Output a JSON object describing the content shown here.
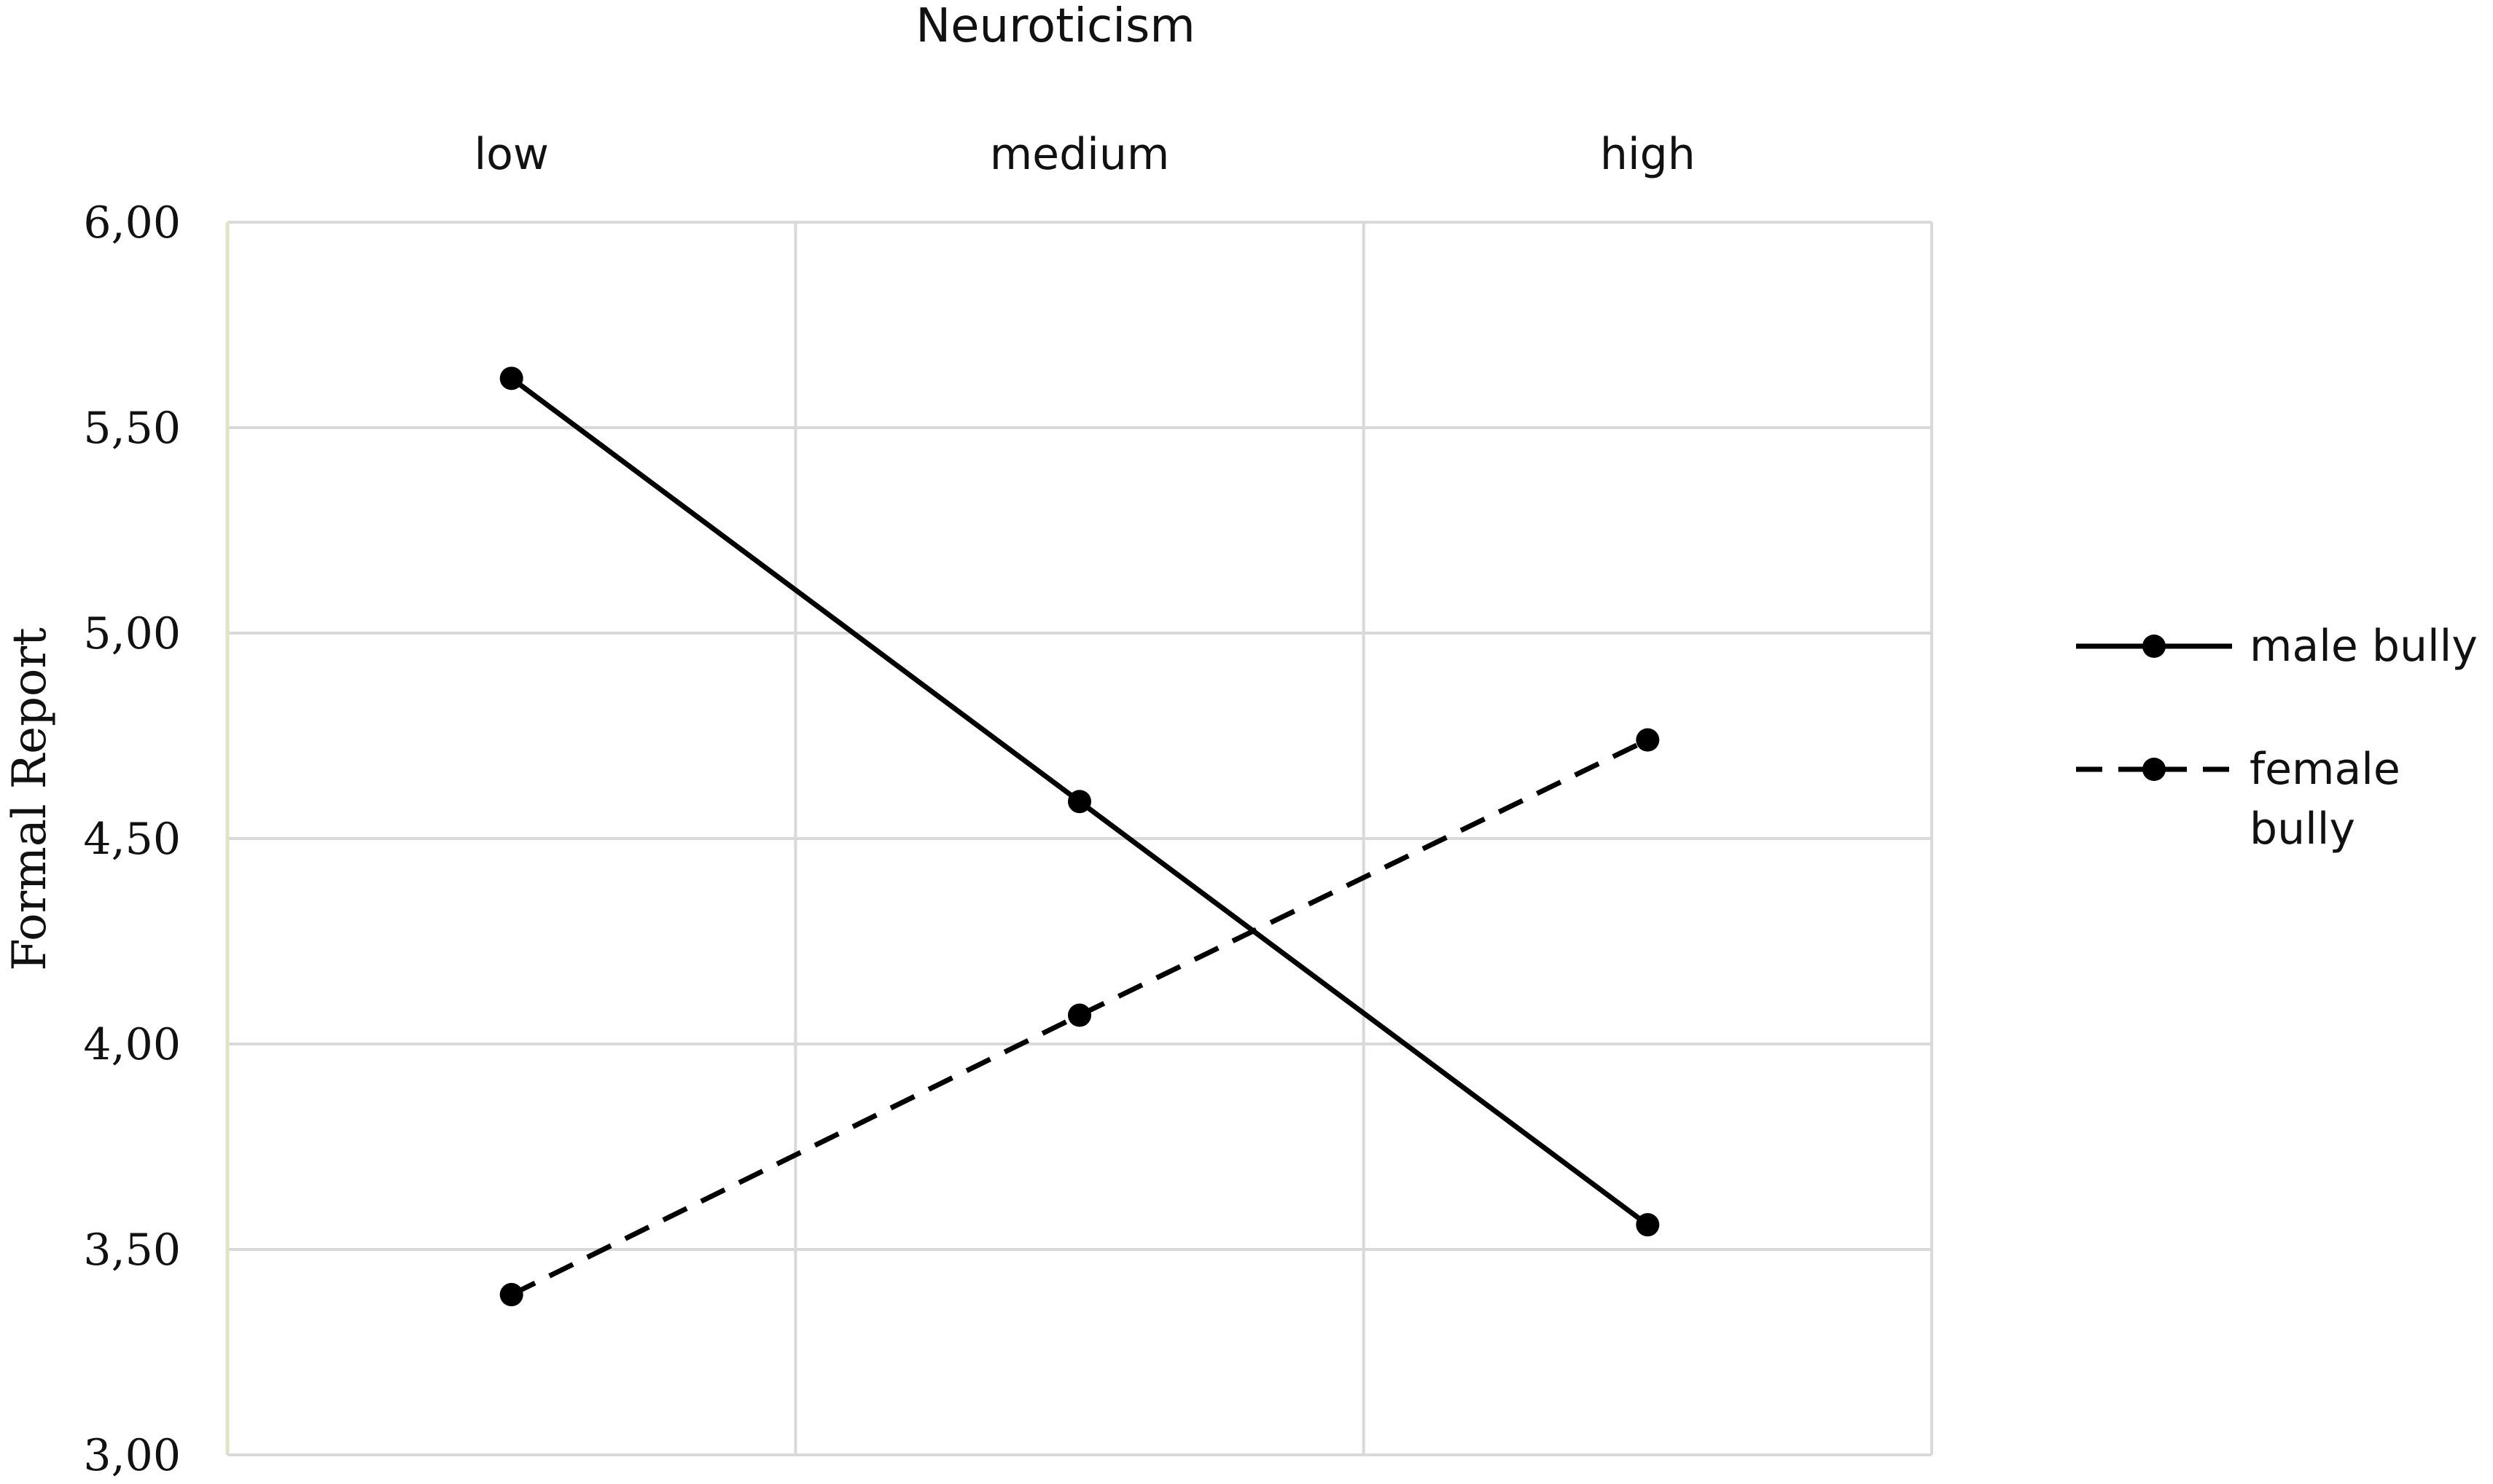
{
  "chart_data": {
    "type": "line",
    "title": "Neuroticism",
    "xlabel": "",
    "ylabel": "Formal Report",
    "categories": [
      "low",
      "medium",
      "high"
    ],
    "ylim": [
      3.0,
      6.0
    ],
    "yticks": [
      "3,00",
      "3,50",
      "4,00",
      "4,50",
      "5,00",
      "5,50",
      "6,00"
    ],
    "grid": true,
    "legend_position": "right",
    "series": [
      {
        "name": "male bully",
        "values": [
          5.62,
          4.59,
          3.56
        ],
        "style": "solid",
        "color": "#000000"
      },
      {
        "name": "female bully",
        "name_lines": [
          "female",
          "bully"
        ],
        "values": [
          3.39,
          4.07,
          4.74
        ],
        "style": "dashed",
        "color": "#000000"
      }
    ],
    "colors": {
      "grid": "#d9d9d9",
      "y_axis": "#dde5c4",
      "line": "#000000"
    }
  }
}
